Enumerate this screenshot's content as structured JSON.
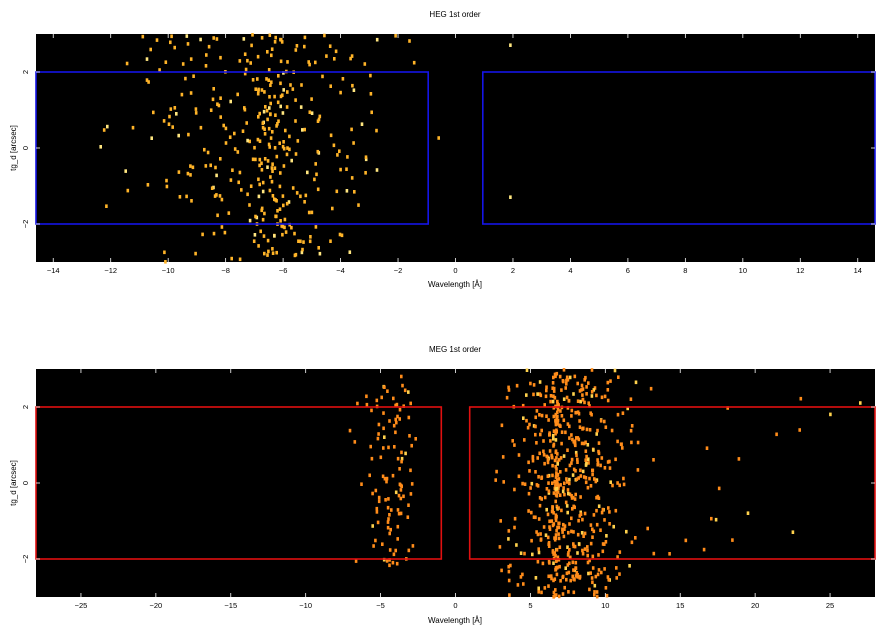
{
  "chart_data": [
    {
      "type": "heatmap",
      "title": "HEG 1st order",
      "xlabel": "Wavelength [Å]",
      "ylabel": "tg_d [arcsec]",
      "xlim": [
        -14.6,
        14.6
      ],
      "ylim": [
        -3.0,
        3.0
      ],
      "xticks": [
        -14,
        -12,
        -10,
        -8,
        -6,
        -4,
        -2,
        0,
        2,
        4,
        6,
        8,
        10,
        12,
        14
      ],
      "yticks": [
        -2,
        0,
        2
      ],
      "background": "#000000",
      "event_color": "#ffb428",
      "event_color_bright": "#ffe680",
      "grid": false,
      "regions": [
        {
          "x": [
            -14.6,
            -0.95
          ],
          "y": [
            -2.0,
            2.0
          ],
          "color": "#1515e6"
        },
        {
          "x": [
            0.95,
            14.6
          ],
          "y": [
            -2.0,
            2.0
          ],
          "color": "#1515e6"
        }
      ],
      "event_clusters": [
        {
          "center": -6.7,
          "sigma": 2.2,
          "count": 300,
          "ymin": -3.0,
          "ymax": 3.0
        },
        {
          "center": -6.4,
          "sigma": 0.35,
          "count": 70,
          "ymin": -3.0,
          "ymax": 3.0
        }
      ],
      "isolated_events": [
        [
          1.9,
          2.7
        ],
        [
          1.9,
          -1.3
        ]
      ]
    },
    {
      "type": "heatmap",
      "title": "MEG 1st order",
      "xlabel": "Wavelength [Å]",
      "ylabel": "tg_d [arcsec]",
      "xlim": [
        -28.0,
        28.0
      ],
      "ylim": [
        -3.0,
        3.0
      ],
      "xticks": [
        -25,
        -20,
        -15,
        -10,
        -5,
        0,
        5,
        10,
        15,
        20,
        25
      ],
      "yticks": [
        -2,
        0,
        2
      ],
      "background": "#000000",
      "event_color": "#ff8c1a",
      "event_color_bright": "#ffd24d",
      "grid": false,
      "regions": [
        {
          "x": [
            -28.0,
            -0.95
          ],
          "y": [
            -2.0,
            2.0
          ],
          "color": "#e01010"
        },
        {
          "x": [
            0.95,
            28.0
          ],
          "y": [
            -2.0,
            2.0
          ],
          "color": "#e01010"
        }
      ],
      "event_clusters": [
        {
          "center": 7.5,
          "sigma": 1.9,
          "count": 520,
          "ymin": -3.0,
          "ymax": 3.0
        },
        {
          "center": 6.7,
          "sigma": 0.12,
          "count": 90,
          "ymin": -3.0,
          "ymax": 3.0
        },
        {
          "center": -4.3,
          "sigma": 1.0,
          "count": 110,
          "ymin": -2.2,
          "ymax": 2.8
        },
        {
          "center": 17.0,
          "sigma": 4.5,
          "count": 22,
          "ymin": -2.2,
          "ymax": 2.7
        }
      ],
      "isolated_events": [
        [
          27.0,
          2.1
        ],
        [
          25.0,
          1.8
        ],
        [
          22.5,
          -1.3
        ],
        [
          19.5,
          -0.8
        ]
      ]
    }
  ]
}
